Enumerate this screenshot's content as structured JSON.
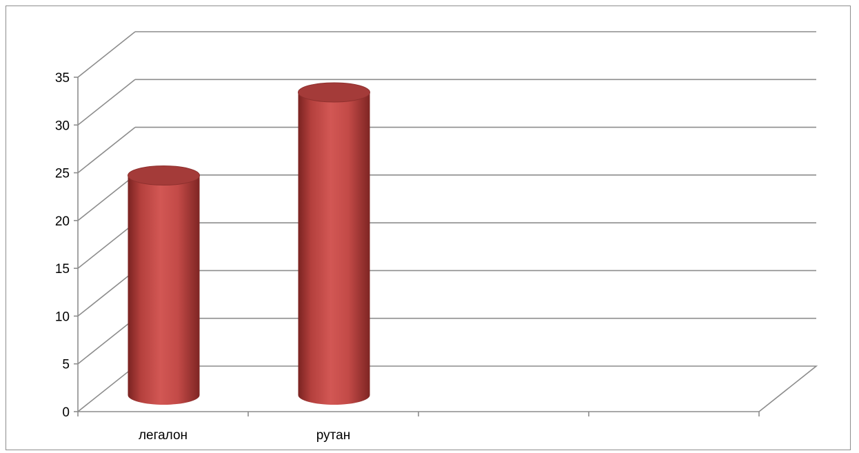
{
  "chart_data": {
    "type": "bar",
    "style": "3d-cylinder",
    "categories": [
      "легалон",
      "рутан",
      "",
      ""
    ],
    "values": [
      24.5,
      33.2,
      null,
      null
    ],
    "ylim": [
      0,
      35
    ],
    "yticks": [
      0,
      5,
      10,
      15,
      20,
      25,
      30,
      35
    ],
    "ytick_labels": [
      "0",
      "5",
      "10",
      "15",
      "20",
      "25",
      "30",
      "35"
    ],
    "grid": true,
    "legend": "none",
    "title": "",
    "xlabel": "",
    "ylabel": "",
    "colors": {
      "bar": "#c0504d",
      "bar_dark": "#7a2321",
      "bar_top": "#a43b39",
      "grid": "#8c8c8c"
    }
  }
}
